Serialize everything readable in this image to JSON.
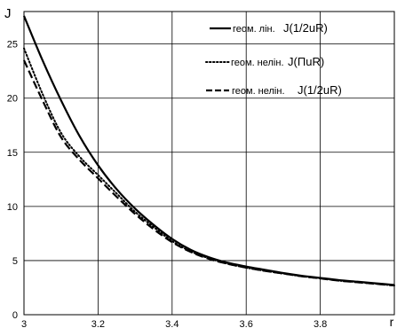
{
  "chart_data": {
    "type": "line",
    "title": "",
    "xlabel": "r",
    "ylabel": "J",
    "xlim": [
      3.0,
      4.0
    ],
    "ylim": [
      0,
      28
    ],
    "xticks": [
      "3",
      "3.2",
      "3.4",
      "3.6",
      "3.8",
      "r"
    ],
    "yticks": [
      "0",
      "5",
      "10",
      "15",
      "20",
      "25"
    ],
    "grid": true,
    "legend_position": "top-right",
    "series": [
      {
        "name": "геом. лін.",
        "formula": "J(1/2uR)",
        "style": "solid",
        "x": [
          3.0,
          3.05,
          3.1,
          3.15,
          3.2,
          3.25,
          3.3,
          3.35,
          3.4,
          3.45,
          3.5,
          3.55,
          3.6,
          3.65,
          3.7,
          3.75,
          3.8,
          3.85,
          3.9,
          3.95,
          4.0
        ],
        "y": [
          27.6,
          23.5,
          19.8,
          16.5,
          13.8,
          11.6,
          9.8,
          8.3,
          7.0,
          6.0,
          5.3,
          4.8,
          4.45,
          4.15,
          3.85,
          3.6,
          3.4,
          3.2,
          3.05,
          2.9,
          2.75
        ]
      },
      {
        "name": "геом. нелін.",
        "formula": "J(ΠuR)",
        "style": "dotted",
        "x": [
          3.0,
          3.05,
          3.1,
          3.15,
          3.2,
          3.25,
          3.3,
          3.35,
          3.4,
          3.45,
          3.5,
          3.55,
          3.6,
          3.65,
          3.7,
          3.75,
          3.8,
          3.85,
          3.9,
          3.95,
          4.0
        ],
        "y": [
          24.6,
          20.4,
          16.8,
          14.6,
          12.9,
          11.2,
          9.5,
          8.1,
          6.8,
          5.85,
          5.2,
          4.7,
          4.35,
          4.05,
          3.8,
          3.55,
          3.35,
          3.15,
          3.0,
          2.85,
          2.7
        ]
      },
      {
        "name": "геом. нелін.",
        "formula": "J(1/2uR)",
        "style": "dashed",
        "x": [
          3.0,
          3.05,
          3.1,
          3.15,
          3.2,
          3.25,
          3.3,
          3.35,
          3.4,
          3.45,
          3.5,
          3.55,
          3.6,
          3.65,
          3.7,
          3.75,
          3.8,
          3.85,
          3.9,
          3.95,
          4.0
        ],
        "y": [
          23.5,
          19.8,
          16.4,
          14.3,
          12.6,
          10.9,
          9.3,
          7.9,
          6.7,
          5.8,
          5.15,
          4.7,
          4.35,
          4.05,
          3.8,
          3.55,
          3.35,
          3.15,
          3.0,
          2.85,
          2.7
        ]
      }
    ]
  }
}
